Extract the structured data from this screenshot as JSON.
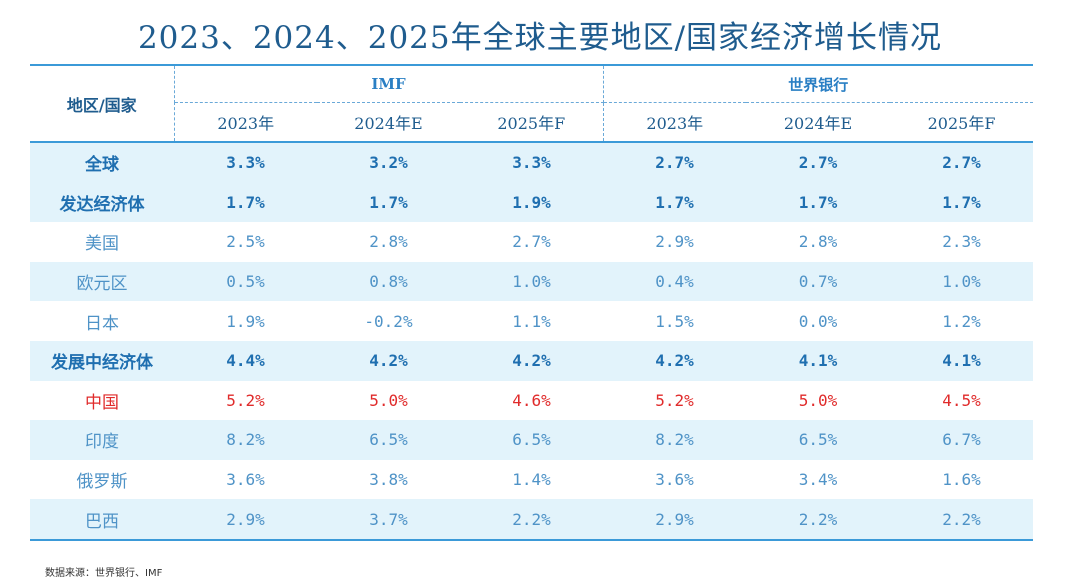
{
  "title": "2023、2024、2025年全球主要地区/国家经济增长情况",
  "header": {
    "region_label": "地区/国家",
    "groups": [
      "IMF",
      "世界银行"
    ],
    "years": [
      "2023年",
      "2024年E",
      "2025年F",
      "2023年",
      "2024年E",
      "2025年F"
    ]
  },
  "rows": [
    {
      "name": "全球",
      "values": [
        "3.3%",
        "3.2%",
        "3.3%",
        "2.7%",
        "2.7%",
        "2.7%"
      ],
      "style": "bold"
    },
    {
      "name": "发达经济体",
      "values": [
        "1.7%",
        "1.7%",
        "1.9%",
        "1.7%",
        "1.7%",
        "1.7%"
      ],
      "style": "bold"
    },
    {
      "name": "美国",
      "values": [
        "2.5%",
        "2.8%",
        "2.7%",
        "2.9%",
        "2.8%",
        "2.3%"
      ],
      "style": "plain"
    },
    {
      "name": "欧元区",
      "values": [
        "0.5%",
        "0.8%",
        "1.0%",
        "0.4%",
        "0.7%",
        "1.0%"
      ],
      "style": "plain"
    },
    {
      "name": "日本",
      "values": [
        "1.9%",
        "-0.2%",
        "1.1%",
        "1.5%",
        "0.0%",
        "1.2%"
      ],
      "style": "plain"
    },
    {
      "name": "发展中经济体",
      "values": [
        "4.4%",
        "4.2%",
        "4.2%",
        "4.2%",
        "4.1%",
        "4.1%"
      ],
      "style": "bold"
    },
    {
      "name": "中国",
      "values": [
        "5.2%",
        "5.0%",
        "4.6%",
        "5.2%",
        "5.0%",
        "4.5%"
      ],
      "style": "red"
    },
    {
      "name": "印度",
      "values": [
        "8.2%",
        "6.5%",
        "6.5%",
        "8.2%",
        "6.5%",
        "6.7%"
      ],
      "style": "plain"
    },
    {
      "name": "俄罗斯",
      "values": [
        "3.6%",
        "3.8%",
        "1.4%",
        "3.6%",
        "3.4%",
        "1.6%"
      ],
      "style": "plain"
    },
    {
      "name": "巴西",
      "values": [
        "2.9%",
        "3.7%",
        "2.2%",
        "2.9%",
        "2.2%",
        "2.2%"
      ],
      "style": "plain"
    }
  ],
  "source": "数据来源：世界银行、IMF",
  "colors": {
    "accent": "#2a7fc4",
    "shade": "#e2f3fb",
    "highlight": "#e02b2b"
  }
}
